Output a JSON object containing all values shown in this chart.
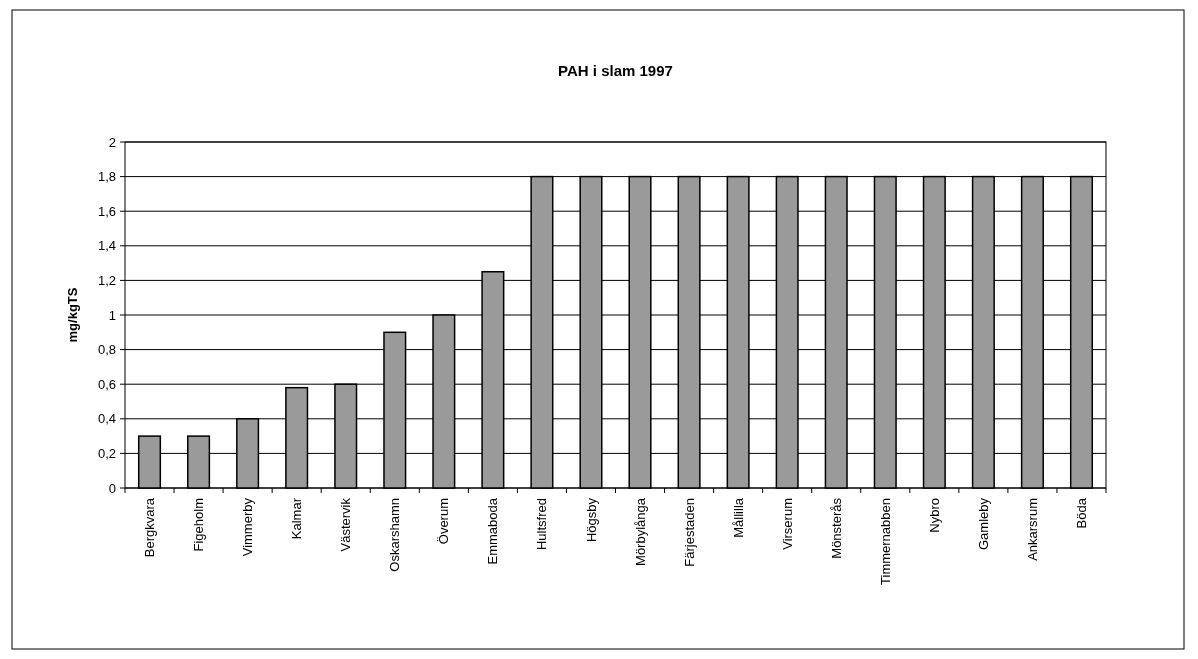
{
  "chart_data": {
    "type": "bar",
    "title": "PAH i slam 1997",
    "ylabel": "mg/kgTS",
    "categories": [
      "Bergkvara",
      "Figeholm",
      "Vimmerby",
      "Kalmar",
      "Västervik",
      "Oskarshamn",
      "Överum",
      "Emmaboda",
      "Hultsfred",
      "Högsby",
      "Mörbylånga",
      "Färjestaden",
      "Mållilla",
      "Virserum",
      "Mönsterås",
      "Timmernabben",
      "Nybro",
      "Gamleby",
      "Ankarsrum",
      "Böda"
    ],
    "values": [
      0.3,
      0.3,
      0.4,
      0.58,
      0.6,
      0.9,
      1.0,
      1.25,
      1.8,
      1.8,
      1.8,
      1.8,
      1.8,
      1.8,
      1.8,
      1.8,
      1.8,
      1.8,
      1.8,
      1.8
    ],
    "color": "#9a9a9a",
    "ylim": [
      0,
      2
    ],
    "yticks": [
      0,
      {
        "value": 0.2,
        "label": "0,2"
      },
      {
        "value": 0.4,
        "label": "0,4"
      },
      {
        "value": 0.6,
        "label": "0,6"
      },
      {
        "value": 0.8,
        "label": "0,8"
      },
      1,
      {
        "value": 1.2,
        "label": "1,2"
      },
      {
        "value": 1.4,
        "label": "1,4"
      },
      {
        "value": 1.6,
        "label": "1,6"
      },
      {
        "value": 1.8,
        "label": "1,8"
      },
      2
    ],
    "grid": "y"
  }
}
